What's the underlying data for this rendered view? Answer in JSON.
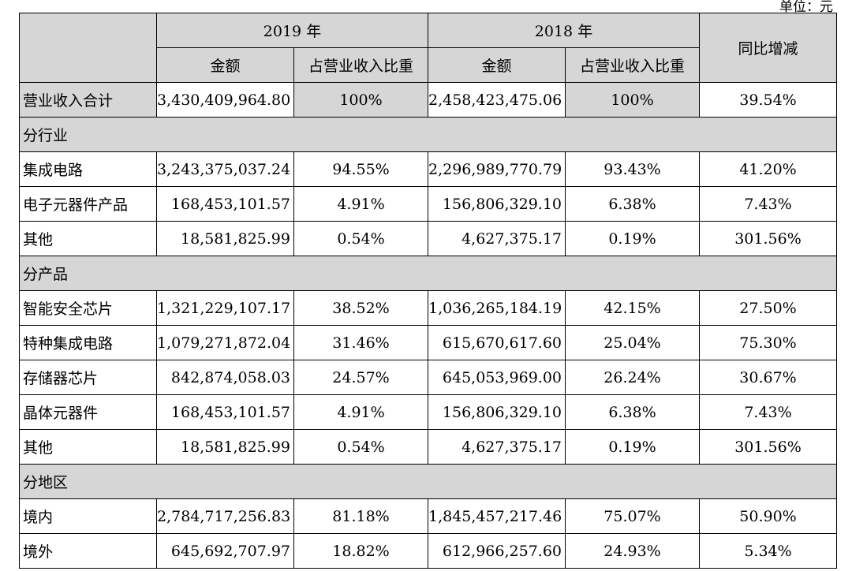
{
  "unit_text": "单位：元",
  "header": {
    "y2019": "2019 年",
    "y2018": "2018 年",
    "yoy": "同比增减",
    "amount": "金额",
    "ratio": "占营业收入比重"
  },
  "total": {
    "label": "营业收入合计",
    "a2019": "3,430,409,964.80",
    "r2019": "100%",
    "a2018": "2,458,423,475.06",
    "r2018": "100%",
    "yoy": "39.54%"
  },
  "sections": [
    {
      "title": "分行业",
      "rows": [
        {
          "label": "集成电路",
          "a2019": "3,243,375,037.24",
          "r2019": "94.55%",
          "a2018": "2,296,989,770.79",
          "r2018": "93.43%",
          "yoy": "41.20%"
        },
        {
          "label": "电子元器件产品",
          "a2019": "168,453,101.57",
          "r2019": "4.91%",
          "a2018": "156,806,329.10",
          "r2018": "6.38%",
          "yoy": "7.43%"
        },
        {
          "label": "其他",
          "a2019": "18,581,825.99",
          "r2019": "0.54%",
          "a2018": "4,627,375.17",
          "r2018": "0.19%",
          "yoy": "301.56%"
        }
      ]
    },
    {
      "title": "分产品",
      "rows": [
        {
          "label": "智能安全芯片",
          "a2019": "1,321,229,107.17",
          "r2019": "38.52%",
          "a2018": "1,036,265,184.19",
          "r2018": "42.15%",
          "yoy": "27.50%"
        },
        {
          "label": "特种集成电路",
          "a2019": "1,079,271,872.04",
          "r2019": "31.46%",
          "a2018": "615,670,617.60",
          "r2018": "25.04%",
          "yoy": "75.30%"
        },
        {
          "label": "存储器芯片",
          "a2019": "842,874,058.03",
          "r2019": "24.57%",
          "a2018": "645,053,969.00",
          "r2018": "26.24%",
          "yoy": "30.67%"
        },
        {
          "label": "晶体元器件",
          "a2019": "168,453,101.57",
          "r2019": "4.91%",
          "a2018": "156,806,329.10",
          "r2018": "6.38%",
          "yoy": "7.43%"
        },
        {
          "label": "其他",
          "a2019": "18,581,825.99",
          "r2019": "0.54%",
          "a2018": "4,627,375.17",
          "r2018": "0.19%",
          "yoy": "301.56%"
        }
      ]
    },
    {
      "title": "分地区",
      "rows": [
        {
          "label": "境内",
          "a2019": "2,784,717,256.83",
          "r2019": "81.18%",
          "a2018": "1,845,457,217.46",
          "r2018": "75.07%",
          "yoy": "50.90%"
        },
        {
          "label": "境外",
          "a2019": "645,692,707.97",
          "r2019": "18.82%",
          "a2018": "612,966,257.60",
          "r2018": "24.93%",
          "yoy": "5.34%"
        }
      ]
    }
  ]
}
